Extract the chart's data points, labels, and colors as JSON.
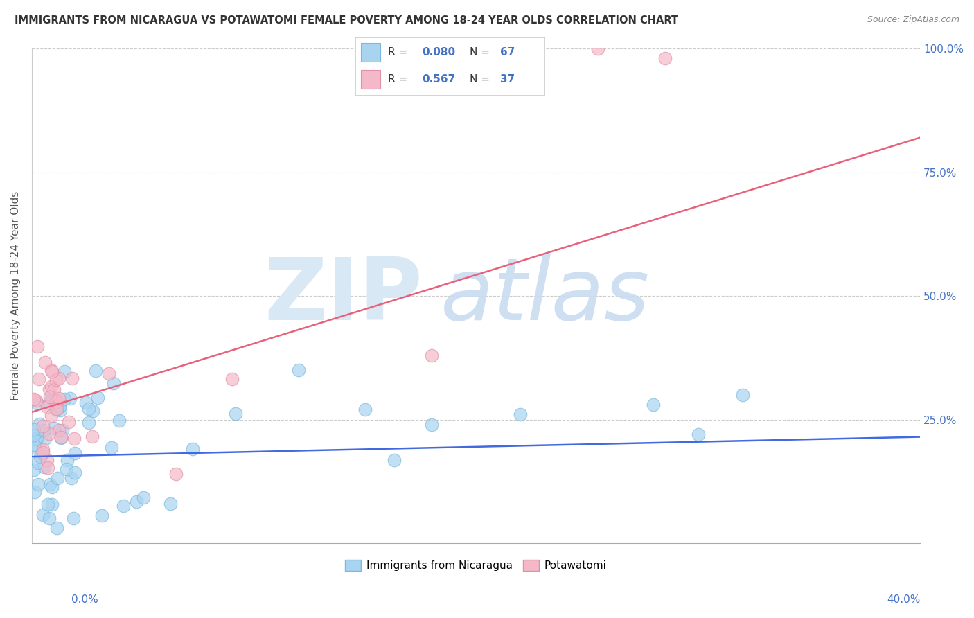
{
  "title": "IMMIGRANTS FROM NICARAGUA VS POTAWATOMI FEMALE POVERTY AMONG 18-24 YEAR OLDS CORRELATION CHART",
  "source": "Source: ZipAtlas.com",
  "ylabel": "Female Poverty Among 18-24 Year Olds",
  "legend_r1": "R = 0.080",
  "legend_n1": "N = 67",
  "legend_r2": "R =  0.567",
  "legend_n2": "N = 37",
  "blue_face_color": "#A8D4F0",
  "blue_edge_color": "#7AB8E0",
  "pink_face_color": "#F5B8C8",
  "pink_edge_color": "#E090A8",
  "blue_line_color": "#4169E1",
  "pink_line_color": "#E8607A",
  "grid_color": "#cccccc",
  "text_color": "#4472C4",
  "watermark_zip_color": "#D8E8F5",
  "watermark_atlas_color": "#C8DCF0",
  "xlim": [
    0.0,
    0.4
  ],
  "ylim": [
    0.0,
    1.0
  ],
  "blue_trend_x0": 0.0,
  "blue_trend_y0": 0.175,
  "blue_trend_x1": 0.4,
  "blue_trend_y1": 0.215,
  "pink_trend_x0": 0.0,
  "pink_trend_y0": 0.265,
  "pink_trend_x1": 0.4,
  "pink_trend_y1": 0.82
}
